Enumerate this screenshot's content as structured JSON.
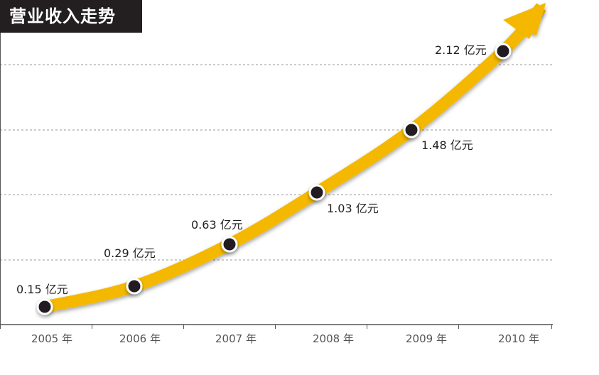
{
  "title": "营业收入走势",
  "colors": {
    "line": "#f5b800",
    "marker_fill": "#231f20",
    "marker_stroke": "#ffffff",
    "grid": "#9a9a9a",
    "axis": "#555555",
    "title_bg": "#231f20"
  },
  "chart_data": {
    "type": "line",
    "title": "营业收入走势",
    "categories": [
      "2005 年",
      "2006 年",
      "2007 年",
      "2008 年",
      "2009 年",
      "2010 年"
    ],
    "x": [
      2005,
      2006,
      2007,
      2008,
      2009,
      2010
    ],
    "series": [
      {
        "values": [
          0.15,
          0.29,
          0.63,
          1.03,
          1.48,
          2.12
        ],
        "data_labels": [
          "0.15 亿元",
          "0.29 亿元",
          "0.63 亿元",
          "1.03 亿元",
          "1.48 亿元",
          "2.12 亿元"
        ]
      }
    ],
    "unit": "亿元",
    "ylim": [
      0,
      2.5
    ],
    "grid": true,
    "grid_style": "dashed-horizontal",
    "arrow_at_end": true,
    "legend": "none"
  }
}
